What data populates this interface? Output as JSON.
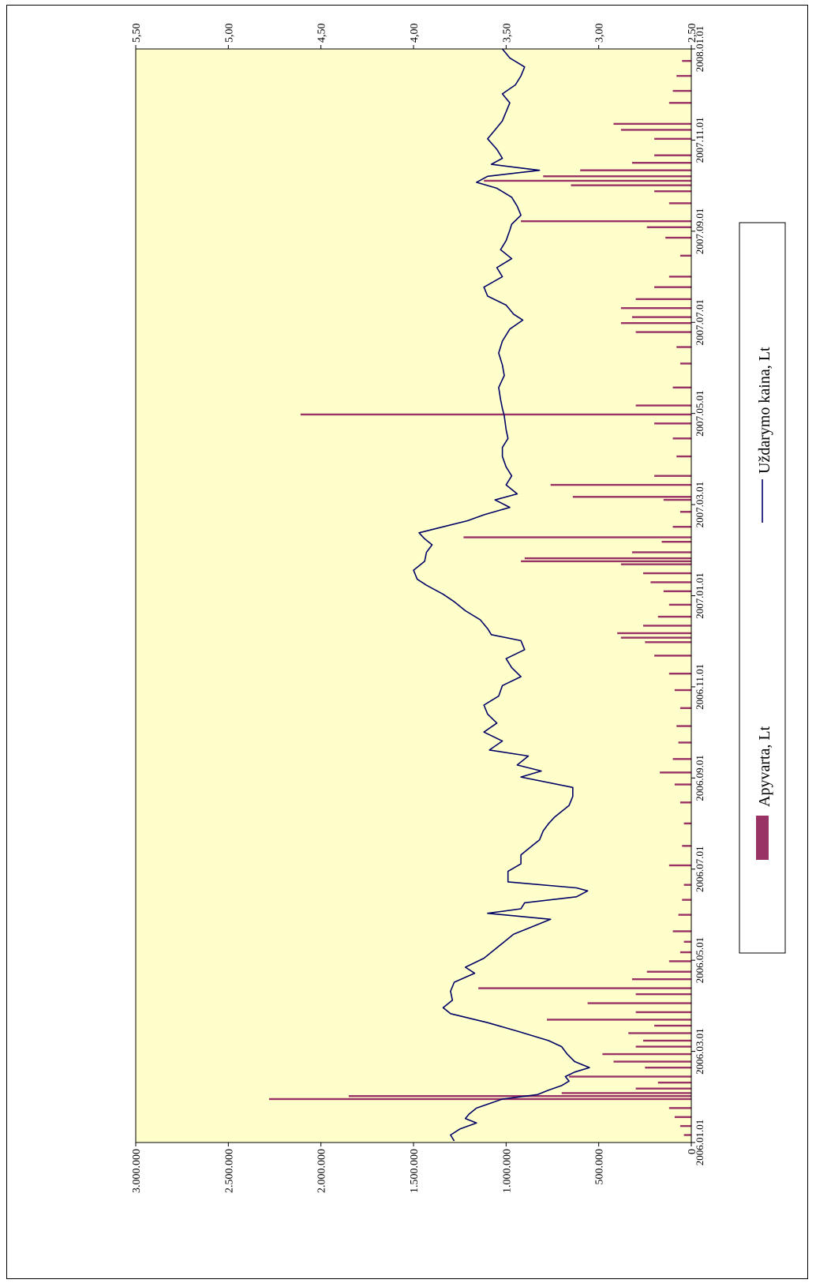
{
  "chart_data": {
    "type": "bar+line",
    "orientation": "rotated-90-clockwise",
    "plot_background": "#FFFFCC",
    "x_axis": {
      "type": "date",
      "range": [
        "2006-01-01",
        "2008-01-01"
      ],
      "tick_labels": [
        "2006.01.01",
        "2006.03.01",
        "2006.05.01",
        "2006.07.01",
        "2006.09.01",
        "2006.11.01",
        "2007.01.01",
        "2007.03.01",
        "2007.05.01",
        "2007.07.01",
        "2007.09.01",
        "2007.11.01",
        "2008.01.01"
      ]
    },
    "y_axis_left": {
      "range": [
        0,
        3000000
      ],
      "tick_labels": [
        "0",
        "500.000",
        "1.000.000",
        "1.500.000",
        "2.000.000",
        "2.500.000",
        "3.000.000"
      ]
    },
    "y_axis_right": {
      "range": [
        2.5,
        5.5
      ],
      "tick_labels": [
        "2,50",
        "3,00",
        "3,50",
        "4,00",
        "4,50",
        "5,00",
        "5,50"
      ]
    },
    "series": [
      {
        "name": "Apyvarta, Lt",
        "type": "bar",
        "axis": "left",
        "color": "#993366",
        "points": [
          [
            "2006-01-06",
            40000
          ],
          [
            "2006-01-12",
            60000
          ],
          [
            "2006-01-18",
            90000
          ],
          [
            "2006-01-24",
            120000
          ],
          [
            "2006-01-30",
            2280000
          ],
          [
            "2006-02-01",
            1850000
          ],
          [
            "2006-02-03",
            700000
          ],
          [
            "2006-02-06",
            300000
          ],
          [
            "2006-02-10",
            180000
          ],
          [
            "2006-02-14",
            660000
          ],
          [
            "2006-02-20",
            250000
          ],
          [
            "2006-02-24",
            420000
          ],
          [
            "2006-03-01",
            480000
          ],
          [
            "2006-03-06",
            300000
          ],
          [
            "2006-03-10",
            260000
          ],
          [
            "2006-03-15",
            340000
          ],
          [
            "2006-03-20",
            200000
          ],
          [
            "2006-03-24",
            780000
          ],
          [
            "2006-03-29",
            300000
          ],
          [
            "2006-04-04",
            560000
          ],
          [
            "2006-04-10",
            300000
          ],
          [
            "2006-04-14",
            1150000
          ],
          [
            "2006-04-20",
            320000
          ],
          [
            "2006-04-25",
            240000
          ],
          [
            "2006-05-02",
            120000
          ],
          [
            "2006-05-08",
            60000
          ],
          [
            "2006-05-15",
            40000
          ],
          [
            "2006-05-22",
            100000
          ],
          [
            "2006-06-02",
            70000
          ],
          [
            "2006-06-12",
            50000
          ],
          [
            "2006-06-22",
            40000
          ],
          [
            "2006-07-05",
            120000
          ],
          [
            "2006-07-18",
            50000
          ],
          [
            "2006-08-02",
            40000
          ],
          [
            "2006-08-16",
            60000
          ],
          [
            "2006-08-28",
            90000
          ],
          [
            "2006-09-05",
            170000
          ],
          [
            "2006-09-14",
            100000
          ],
          [
            "2006-09-25",
            70000
          ],
          [
            "2006-10-06",
            80000
          ],
          [
            "2006-10-18",
            60000
          ],
          [
            "2006-10-30",
            90000
          ],
          [
            "2006-11-10",
            120000
          ],
          [
            "2006-11-22",
            200000
          ],
          [
            "2006-12-01",
            250000
          ],
          [
            "2006-12-04",
            380000
          ],
          [
            "2006-12-07",
            400000
          ],
          [
            "2006-12-12",
            260000
          ],
          [
            "2006-12-18",
            180000
          ],
          [
            "2006-12-26",
            120000
          ],
          [
            "2007-01-04",
            150000
          ],
          [
            "2007-01-10",
            220000
          ],
          [
            "2007-01-16",
            260000
          ],
          [
            "2007-01-22",
            380000
          ],
          [
            "2007-01-24",
            920000
          ],
          [
            "2007-01-26",
            900000
          ],
          [
            "2007-01-30",
            320000
          ],
          [
            "2007-02-06",
            160000
          ],
          [
            "2007-02-09",
            1230000
          ],
          [
            "2007-02-16",
            100000
          ],
          [
            "2007-02-26",
            60000
          ],
          [
            "2007-03-06",
            150000
          ],
          [
            "2007-03-08",
            640000
          ],
          [
            "2007-03-16",
            760000
          ],
          [
            "2007-03-22",
            200000
          ],
          [
            "2007-04-04",
            80000
          ],
          [
            "2007-04-16",
            100000
          ],
          [
            "2007-04-26",
            200000
          ],
          [
            "2007-05-02",
            2110000
          ],
          [
            "2007-05-08",
            300000
          ],
          [
            "2007-05-20",
            100000
          ],
          [
            "2007-06-05",
            60000
          ],
          [
            "2007-06-16",
            80000
          ],
          [
            "2007-06-26",
            300000
          ],
          [
            "2007-07-02",
            380000
          ],
          [
            "2007-07-06",
            320000
          ],
          [
            "2007-07-12",
            380000
          ],
          [
            "2007-07-18",
            300000
          ],
          [
            "2007-07-26",
            200000
          ],
          [
            "2007-08-02",
            120000
          ],
          [
            "2007-08-16",
            60000
          ],
          [
            "2007-08-28",
            140000
          ],
          [
            "2007-09-04",
            240000
          ],
          [
            "2007-09-08",
            920000
          ],
          [
            "2007-09-20",
            120000
          ],
          [
            "2007-09-28",
            200000
          ],
          [
            "2007-10-02",
            650000
          ],
          [
            "2007-10-05",
            1120000
          ],
          [
            "2007-10-08",
            800000
          ],
          [
            "2007-10-12",
            600000
          ],
          [
            "2007-10-17",
            320000
          ],
          [
            "2007-10-22",
            200000
          ],
          [
            "2007-11-02",
            200000
          ],
          [
            "2007-11-08",
            380000
          ],
          [
            "2007-11-12",
            420000
          ],
          [
            "2007-11-26",
            120000
          ],
          [
            "2007-12-04",
            100000
          ],
          [
            "2007-12-14",
            80000
          ],
          [
            "2007-12-24",
            50000
          ]
        ]
      },
      {
        "name": "Uždarymo kaina, Lt",
        "type": "line",
        "axis": "right",
        "color": "#000066",
        "points": [
          [
            "2006-01-02",
            3.78
          ],
          [
            "2006-01-06",
            3.8
          ],
          [
            "2006-01-10",
            3.75
          ],
          [
            "2006-01-14",
            3.66
          ],
          [
            "2006-01-17",
            3.72
          ],
          [
            "2006-01-20",
            3.7
          ],
          [
            "2006-01-24",
            3.66
          ],
          [
            "2006-01-30",
            3.52
          ],
          [
            "2006-02-02",
            3.33
          ],
          [
            "2006-02-05",
            3.27
          ],
          [
            "2006-02-08",
            3.2
          ],
          [
            "2006-02-11",
            3.16
          ],
          [
            "2006-02-14",
            3.18
          ],
          [
            "2006-02-17",
            3.13
          ],
          [
            "2006-02-20",
            3.05
          ],
          [
            "2006-02-24",
            3.13
          ],
          [
            "2006-03-01",
            3.17
          ],
          [
            "2006-03-06",
            3.2
          ],
          [
            "2006-03-10",
            3.27
          ],
          [
            "2006-03-16",
            3.43
          ],
          [
            "2006-03-22",
            3.6
          ],
          [
            "2006-03-28",
            3.8
          ],
          [
            "2006-04-01",
            3.84
          ],
          [
            "2006-04-06",
            3.79
          ],
          [
            "2006-04-12",
            3.8
          ],
          [
            "2006-04-18",
            3.78
          ],
          [
            "2006-04-24",
            3.67
          ],
          [
            "2006-04-28",
            3.72
          ],
          [
            "2006-05-04",
            3.62
          ],
          [
            "2006-05-08",
            3.58
          ],
          [
            "2006-05-14",
            3.52
          ],
          [
            "2006-05-20",
            3.46
          ],
          [
            "2006-05-26",
            3.34
          ],
          [
            "2006-05-30",
            3.26
          ],
          [
            "2006-06-03",
            3.6
          ],
          [
            "2006-06-06",
            3.42
          ],
          [
            "2006-06-10",
            3.4
          ],
          [
            "2006-06-14",
            3.12
          ],
          [
            "2006-06-18",
            3.06
          ],
          [
            "2006-06-20",
            3.12
          ],
          [
            "2006-06-24",
            3.49
          ],
          [
            "2006-07-01",
            3.49
          ],
          [
            "2006-07-06",
            3.42
          ],
          [
            "2006-07-12",
            3.42
          ],
          [
            "2006-07-18",
            3.36
          ],
          [
            "2006-07-22",
            3.32
          ],
          [
            "2006-07-28",
            3.3
          ],
          [
            "2006-08-02",
            3.27
          ],
          [
            "2006-08-06",
            3.24
          ],
          [
            "2006-08-14",
            3.16
          ],
          [
            "2006-08-20",
            3.14
          ],
          [
            "2006-08-26",
            3.14
          ],
          [
            "2006-09-02",
            3.42
          ],
          [
            "2006-09-06",
            3.31
          ],
          [
            "2006-09-10",
            3.44
          ],
          [
            "2006-09-16",
            3.38
          ],
          [
            "2006-09-20",
            3.59
          ],
          [
            "2006-09-26",
            3.52
          ],
          [
            "2006-10-02",
            3.62
          ],
          [
            "2006-10-08",
            3.55
          ],
          [
            "2006-10-14",
            3.6
          ],
          [
            "2006-10-20",
            3.62
          ],
          [
            "2006-10-26",
            3.54
          ],
          [
            "2006-11-02",
            3.52
          ],
          [
            "2006-11-08",
            3.42
          ],
          [
            "2006-11-14",
            3.47
          ],
          [
            "2006-11-20",
            3.5
          ],
          [
            "2006-11-26",
            3.4
          ],
          [
            "2006-12-02",
            3.42
          ],
          [
            "2006-12-06",
            3.58
          ],
          [
            "2006-12-10",
            3.6
          ],
          [
            "2006-12-16",
            3.64
          ],
          [
            "2006-12-22",
            3.72
          ],
          [
            "2006-12-28",
            3.78
          ],
          [
            "2007-01-02",
            3.84
          ],
          [
            "2007-01-08",
            3.93
          ],
          [
            "2007-01-12",
            3.98
          ],
          [
            "2007-01-18",
            4.0
          ],
          [
            "2007-01-24",
            3.94
          ],
          [
            "2007-01-30",
            3.93
          ],
          [
            "2007-02-04",
            3.9
          ],
          [
            "2007-02-08",
            3.94
          ],
          [
            "2007-02-12",
            3.97
          ],
          [
            "2007-02-16",
            3.84
          ],
          [
            "2007-02-20",
            3.71
          ],
          [
            "2007-02-24",
            3.62
          ],
          [
            "2007-03-01",
            3.48
          ],
          [
            "2007-03-06",
            3.56
          ],
          [
            "2007-03-10",
            3.44
          ],
          [
            "2007-03-16",
            3.5
          ],
          [
            "2007-03-22",
            3.47
          ],
          [
            "2007-03-28",
            3.5
          ],
          [
            "2007-04-04",
            3.52
          ],
          [
            "2007-04-10",
            3.52
          ],
          [
            "2007-04-16",
            3.49
          ],
          [
            "2007-04-22",
            3.5
          ],
          [
            "2007-05-01",
            3.51
          ],
          [
            "2007-05-06",
            3.52
          ],
          [
            "2007-05-12",
            3.53
          ],
          [
            "2007-05-20",
            3.54
          ],
          [
            "2007-05-28",
            3.51
          ],
          [
            "2007-06-04",
            3.52
          ],
          [
            "2007-06-12",
            3.54
          ],
          [
            "2007-06-20",
            3.52
          ],
          [
            "2007-06-28",
            3.48
          ],
          [
            "2007-07-04",
            3.41
          ],
          [
            "2007-07-08",
            3.46
          ],
          [
            "2007-07-14",
            3.5
          ],
          [
            "2007-07-20",
            3.6
          ],
          [
            "2007-07-26",
            3.62
          ],
          [
            "2007-08-02",
            3.52
          ],
          [
            "2007-08-08",
            3.55
          ],
          [
            "2007-08-14",
            3.47
          ],
          [
            "2007-08-20",
            3.53
          ],
          [
            "2007-08-26",
            3.5
          ],
          [
            "2007-09-02",
            3.48
          ],
          [
            "2007-09-06",
            3.47
          ],
          [
            "2007-09-12",
            3.42
          ],
          [
            "2007-09-18",
            3.44
          ],
          [
            "2007-09-24",
            3.47
          ],
          [
            "2007-09-30",
            3.55
          ],
          [
            "2007-10-04",
            3.66
          ],
          [
            "2007-10-08",
            3.6
          ],
          [
            "2007-10-12",
            3.32
          ],
          [
            "2007-10-16",
            3.58
          ],
          [
            "2007-10-20",
            3.52
          ],
          [
            "2007-10-26",
            3.55
          ],
          [
            "2007-11-02",
            3.6
          ],
          [
            "2007-11-08",
            3.56
          ],
          [
            "2007-11-14",
            3.52
          ],
          [
            "2007-11-20",
            3.5
          ],
          [
            "2007-11-26",
            3.48
          ],
          [
            "2007-12-02",
            3.52
          ],
          [
            "2007-12-08",
            3.45
          ],
          [
            "2007-12-14",
            3.42
          ],
          [
            "2007-12-20",
            3.4
          ],
          [
            "2007-12-26",
            3.48
          ],
          [
            "2008-01-01",
            3.52
          ]
        ]
      }
    ],
    "legend": {
      "placement": "right",
      "entries": [
        {
          "label": "Apyvarta, Lt",
          "swatch": "bar",
          "color": "#993366"
        },
        {
          "label": "Uždarymo kaina, Lt",
          "swatch": "line",
          "color": "#000066"
        }
      ]
    },
    "grid": false
  }
}
